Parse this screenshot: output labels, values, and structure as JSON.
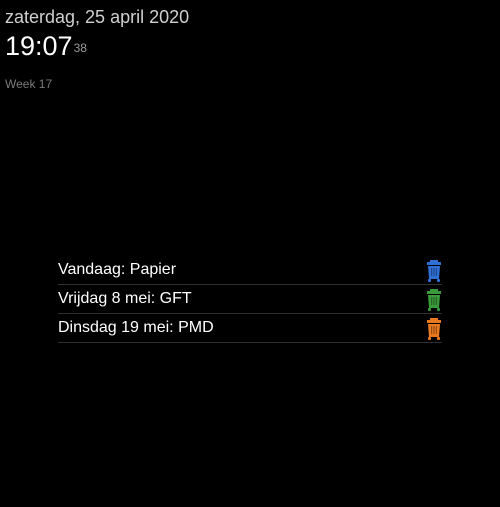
{
  "clock": {
    "date": "zaterdag, 25 april 2020",
    "time": "19:07",
    "seconds": "38",
    "week": "Week 17"
  },
  "garbage": {
    "items": [
      {
        "label": "Vandaag: Papier",
        "icon": "blue-bin-icon",
        "color": "#2f6fd6"
      },
      {
        "label": "Vrijdag 8 mei: GFT",
        "icon": "green-bin-icon",
        "color": "#3a9a3a"
      },
      {
        "label": "Dinsdag 19 mei: PMD",
        "icon": "orange-bin-icon",
        "color": "#e8791f"
      }
    ]
  }
}
